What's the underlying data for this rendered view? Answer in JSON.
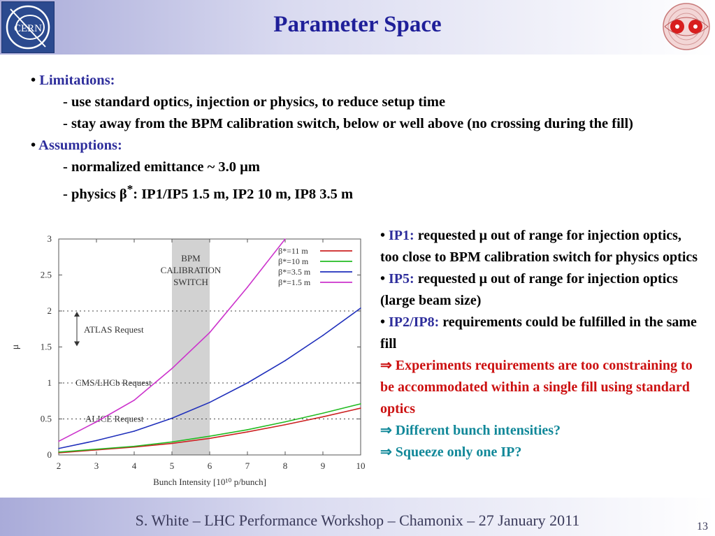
{
  "header": {
    "title": "Parameter Space"
  },
  "logos": {
    "left": "CERN"
  },
  "left_bullets": {
    "limitations_head": "Limitations:",
    "lim1": "- use standard optics, injection or physics, to reduce setup time",
    "lim2": "- stay away from the BPM calibration switch, below or well above (no crossing during the fill)",
    "assumptions_head": "Assumptions:",
    "asm1_a": "- normalized emittance ~ 3.0 ",
    "asm1_mu": "μ",
    "asm1_b": "m",
    "asm2_a": "- physics ",
    "asm2_beta": "β",
    "asm2_star": "*",
    "asm2_b": ": IP1/IP5 1.5 m, IP2 10 m, IP8 3.5 m"
  },
  "right_bullets": {
    "ip1_label": "IP1:",
    "ip1_text_a": " requested ",
    "ip1_mu": "μ",
    "ip1_text_b": " out of range for injection optics, too close to BPM calibration switch for physics optics",
    "ip5_label": "IP5:",
    "ip5_text_a": " requested ",
    "ip5_mu": "μ",
    "ip5_text_b": "  out of range for injection optics (large beam size)",
    "ip28_label": "IP2/IP8:",
    "ip28_text": " requirements could be fulfilled in the same fill",
    "concl1": "⇒ Experiments requirements are too constraining to be accommodated within a single fill using standard optics",
    "concl2": "⇒ Different bunch intensities?",
    "concl3": "⇒ Squeeze only one IP?"
  },
  "chart_data": {
    "type": "line",
    "xlabel": "Bunch Intensity [10¹⁰ p/bunch]",
    "ylabel": "μ",
    "xlim": [
      2,
      10
    ],
    "ylim": [
      0,
      3
    ],
    "xticks": [
      "2",
      "3",
      "4",
      "5",
      "6",
      "7",
      "8",
      "9",
      "10"
    ],
    "yticks": [
      "0",
      "0.5",
      "1",
      "1.5",
      "2",
      "2.5",
      "3"
    ],
    "legend_position": "top-right",
    "series": [
      {
        "name": "β*=11 m",
        "color": "#cc2222",
        "x": [
          2,
          3,
          4,
          5,
          6,
          7,
          8,
          9,
          10
        ],
        "y": [
          0.03,
          0.07,
          0.11,
          0.16,
          0.23,
          0.32,
          0.42,
          0.53,
          0.65
        ]
      },
      {
        "name": "β*=10 m",
        "color": "#22bb22",
        "x": [
          2,
          3,
          4,
          5,
          6,
          7,
          8,
          9,
          10
        ],
        "y": [
          0.04,
          0.08,
          0.12,
          0.18,
          0.26,
          0.35,
          0.46,
          0.58,
          0.71
        ]
      },
      {
        "name": "β*=3.5 m",
        "color": "#1f2fbb",
        "x": [
          2,
          3,
          4,
          5,
          6,
          7,
          8,
          9,
          10
        ],
        "y": [
          0.09,
          0.2,
          0.33,
          0.51,
          0.73,
          1.0,
          1.31,
          1.66,
          2.04
        ]
      },
      {
        "name": "β*=1.5 m",
        "color": "#cc33cc",
        "x": [
          2,
          3,
          4,
          5,
          6,
          7,
          8
        ],
        "y": [
          0.19,
          0.46,
          0.76,
          1.2,
          1.7,
          2.33,
          3.0
        ]
      }
    ],
    "calibration_band": {
      "label_line1": "BPM",
      "label_line2": "CALIBRATION",
      "label_line3": "SWITCH",
      "x_range": [
        5,
        6
      ]
    },
    "reference_lines": [
      {
        "label": "ATLAS Request",
        "y": 2.0
      },
      {
        "label": "CMS/LHCb Request",
        "y": 1.0
      },
      {
        "label": "ALICE Request",
        "y": 0.5
      }
    ]
  },
  "footer": {
    "text": "S. White – LHC Performance Workshop – Chamonix – 27 January 2011",
    "page": "13"
  }
}
